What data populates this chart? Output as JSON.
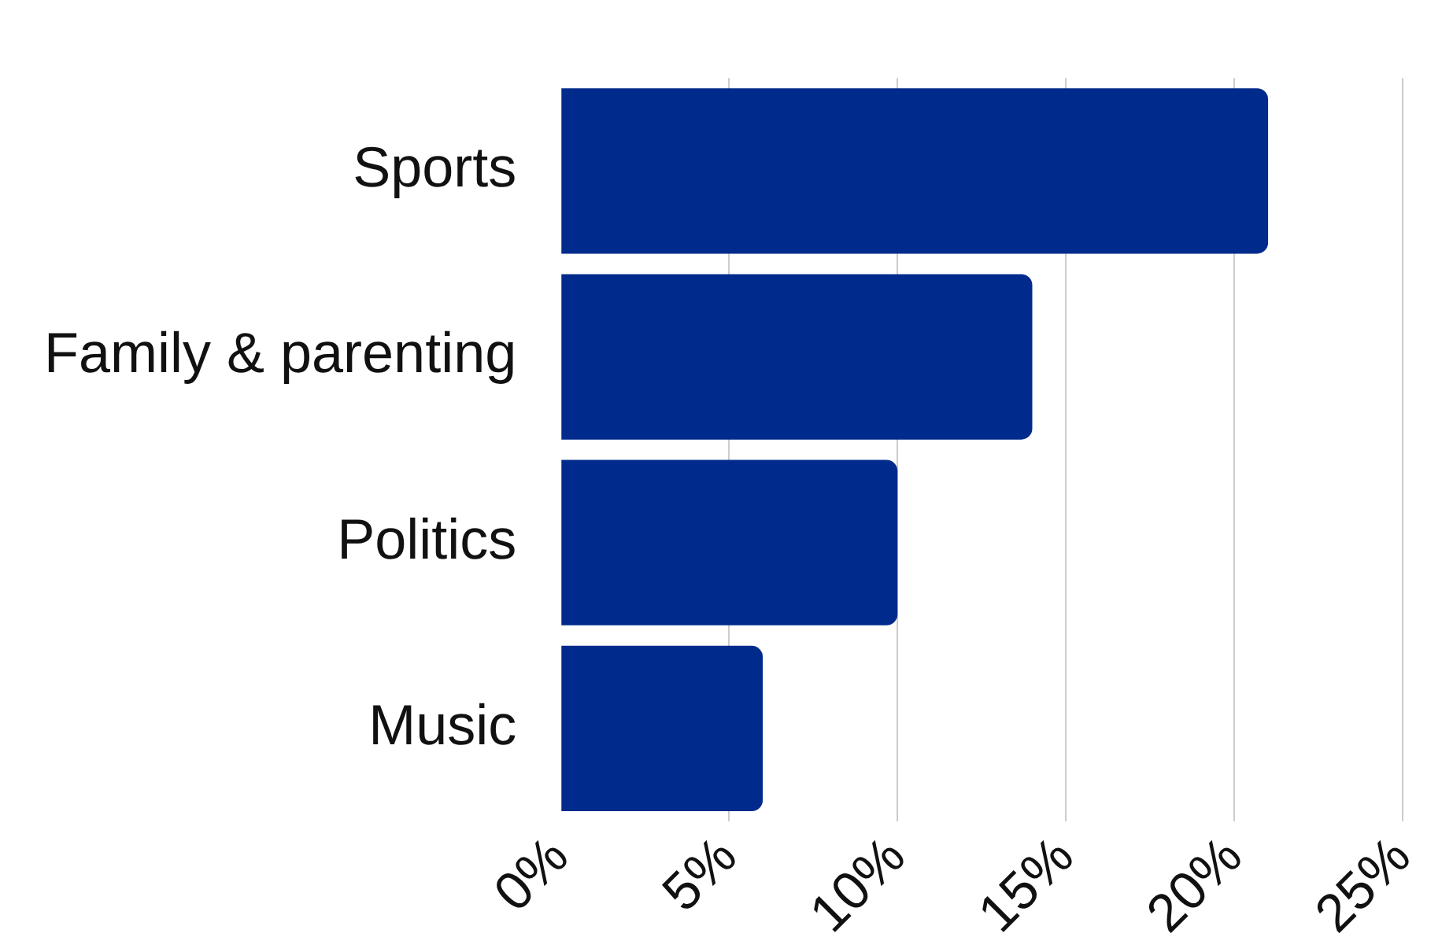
{
  "chart_data": {
    "type": "bar",
    "orientation": "horizontal",
    "categories": [
      "Sports",
      "Family & parenting",
      "Politics",
      "Music"
    ],
    "values": [
      21,
      14,
      10,
      6
    ],
    "color": "#002a8c",
    "xlim": [
      0,
      25
    ],
    "xticks": [
      {
        "value": 0,
        "label": "0%"
      },
      {
        "value": 5,
        "label": "5%"
      },
      {
        "value": 10,
        "label": "10%"
      },
      {
        "value": 15,
        "label": "15%"
      },
      {
        "value": 20,
        "label": "20%"
      },
      {
        "value": 25,
        "label": "25%"
      }
    ],
    "grid": "x"
  }
}
